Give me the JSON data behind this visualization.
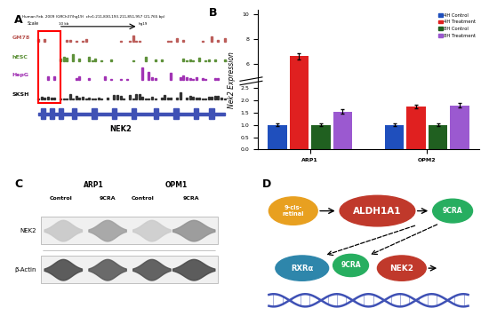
{
  "panel_A_label": "A",
  "panel_B_label": "B",
  "panel_C_label": "C",
  "panel_D_label": "D",
  "bar_categories": [
    "ARP1",
    "OPM2"
  ],
  "bar_groups": [
    "4H Control",
    "4H Treatment",
    "8H Control",
    "8H Treatment"
  ],
  "bar_colors": [
    "#1F4FBD",
    "#E02020",
    "#206020",
    "#9B59D0"
  ],
  "bar_values": {
    "ARP1": [
      1.0,
      6.6,
      1.0,
      1.55
    ],
    "OPM2": [
      1.0,
      1.75,
      1.0,
      1.8
    ]
  },
  "bar_errors": {
    "ARP1": [
      0.05,
      0.25,
      0.05,
      0.08
    ],
    "OPM2": [
      0.05,
      0.08,
      0.05,
      0.1
    ]
  },
  "ylabel_B": "Nek2 Expression",
  "panel_C_title_groups": [
    "ARP1",
    "OPM1"
  ],
  "panel_C_subtitles": [
    "Control",
    "9CRA",
    "Control",
    "9CRA"
  ],
  "panel_C_row_labels": [
    "NEK2",
    "β-Actin"
  ],
  "background_color": "#FFFFFF"
}
